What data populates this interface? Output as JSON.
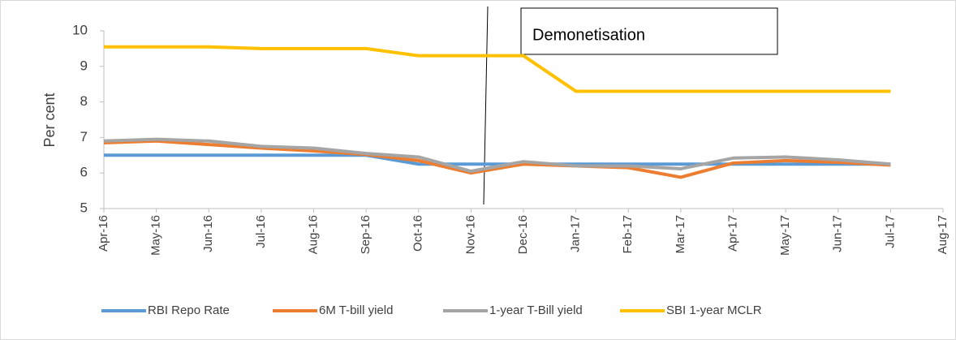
{
  "chart_data": {
    "type": "line",
    "y_label": "Per cent",
    "annotation": "Demonetisation",
    "categories": [
      "Apr-16",
      "May-16",
      "Jun-16",
      "Jul-16",
      "Aug-16",
      "Sep-16",
      "Oct-16",
      "Nov-16",
      "Dec-16",
      "Jan-17",
      "Feb-17",
      "Mar-17",
      "Apr-17",
      "May-17",
      "Jun-17",
      "Jul-17",
      "Aug-17"
    ],
    "series": [
      {
        "name": "RBI Repo Rate",
        "color": "#5b9bd5",
        "values": [
          6.5,
          6.5,
          6.5,
          6.5,
          6.5,
          6.5,
          6.25,
          6.25,
          6.25,
          6.25,
          6.25,
          6.25,
          6.25,
          6.25,
          6.25,
          6.25,
          null
        ]
      },
      {
        "name": "6M T-bill yield",
        "color": "#ed7d31",
        "values": [
          6.85,
          6.9,
          6.8,
          6.7,
          6.62,
          6.52,
          6.35,
          6.0,
          6.25,
          6.2,
          6.15,
          5.88,
          6.28,
          6.35,
          6.3,
          6.22,
          null
        ]
      },
      {
        "name": "1-year T-Bill yield",
        "color": "#a5a5a5",
        "values": [
          6.9,
          6.95,
          6.9,
          6.75,
          6.7,
          6.55,
          6.45,
          6.05,
          6.32,
          6.2,
          6.2,
          6.12,
          6.42,
          6.45,
          6.37,
          6.25,
          null
        ]
      },
      {
        "name": "SBI 1-year MCLR",
        "color": "#ffc000",
        "values": [
          9.55,
          9.55,
          9.55,
          9.5,
          9.5,
          9.5,
          9.3,
          9.3,
          9.3,
          8.3,
          8.3,
          8.3,
          8.3,
          8.3,
          8.3,
          8.3,
          null
        ]
      }
    ],
    "ylim": [
      5,
      10
    ],
    "yticks": [
      5,
      6,
      7,
      8,
      9,
      10
    ],
    "legend": "bottom"
  }
}
